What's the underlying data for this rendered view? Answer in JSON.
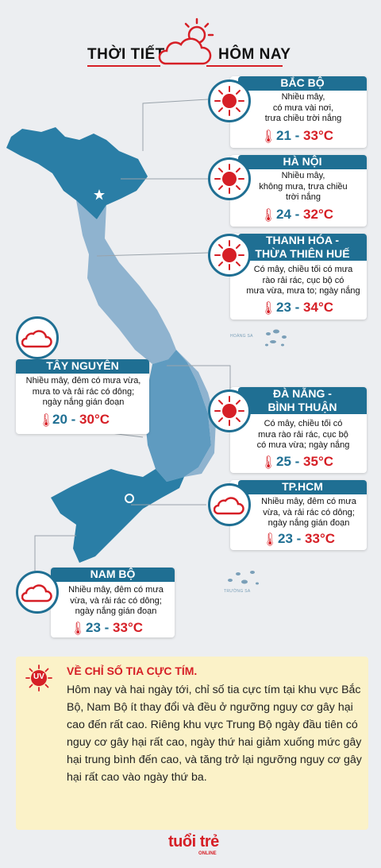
{
  "header": {
    "title_left": "THỜI TIẾT",
    "title_right": "HÔM NAY"
  },
  "regions": {
    "bac_bo": {
      "name": "BẮC BỘ",
      "desc": [
        "Nhiều mây,",
        "có mưa vài nơi,",
        "trưa chiều trời nắng"
      ],
      "low": "21",
      "high": "33",
      "unit": "°C",
      "icon": "sun-icon"
    },
    "ha_noi": {
      "name": "HÀ NỘI",
      "desc": [
        "Nhiều mây,",
        "không mưa, trưa chiều",
        "trời nắng"
      ],
      "low": "24",
      "high": "32",
      "unit": "°C",
      "icon": "sun-icon"
    },
    "thanh_hoa": {
      "name_line1": "THANH HÓA -",
      "name_line2": "THỪA THIÊN HUẾ",
      "desc": [
        "Có mây, chiều tối có mưa",
        "rào rải rác, cục bộ có",
        "mưa vừa, mưa to; ngày nắng"
      ],
      "low": "23",
      "high": "34",
      "unit": "°C",
      "icon": "sun-icon"
    },
    "tay_nguyen": {
      "name": "TÂY NGUYÊN",
      "desc": [
        "Nhiều mây, đêm có mưa vừa,",
        "mưa to và rải rác có dông;",
        "ngày nắng gián đoạn"
      ],
      "low": "20",
      "high": "30",
      "unit": "°C",
      "icon": "cloud-icon"
    },
    "da_nang": {
      "name_line1": "ĐÀ NẴNG -",
      "name_line2": "BÌNH THUẬN",
      "desc": [
        "Có mây, chiều tối có",
        "mưa rào rải rác, cục bộ",
        "có mưa vừa; ngày nắng"
      ],
      "low": "25",
      "high": "35",
      "unit": "°C",
      "icon": "sun-icon"
    },
    "tphcm": {
      "name": "TP.HCM",
      "desc": [
        "Nhiều mây, đêm có mưa",
        "vừa, và rải rác có dông;",
        "ngày nắng gián đoạn"
      ],
      "low": "23",
      "high": "33",
      "unit": "°C",
      "icon": "cloud-icon"
    },
    "nam_bo": {
      "name": "NAM BỘ",
      "desc": [
        "Nhiều mây, đêm có mưa",
        "vừa, và rải rác có dông;",
        "ngày nắng gián đoạn"
      ],
      "low": "23",
      "high": "33",
      "unit": "°C",
      "icon": "cloud-icon"
    }
  },
  "map": {
    "island1": "HOÀNG SA",
    "island2": "TRƯỜNG SA"
  },
  "uv": {
    "badge": "UV",
    "title": "VỀ CHỈ SỐ TIA CỰC TÍM.",
    "text": "Hôm nay và hai ngày tới, chỉ số tia cực tím tại khu vực Bắc Bộ, Nam Bộ ít thay đổi và đều ở ngưỡng nguy cơ gây hại cao đến rất cao. Riêng khu vực Trung Bộ ngày đầu tiên có nguy cơ gây hại rất cao, ngày thứ hai giảm xuống mức gây hại trung bình đến cao, và tăng trở lại ngưỡng nguy cơ gây hại rất cao vào ngày thứ ba."
  },
  "logo": {
    "text": "tuổi trẻ",
    "sub": "ONLINE"
  },
  "colors": {
    "primary": "#1f6f93",
    "accent": "#d61f26",
    "map_dark": "#2a7ea6",
    "map_light": "#8fb3cf",
    "uv_bg": "#fbf2c8"
  }
}
